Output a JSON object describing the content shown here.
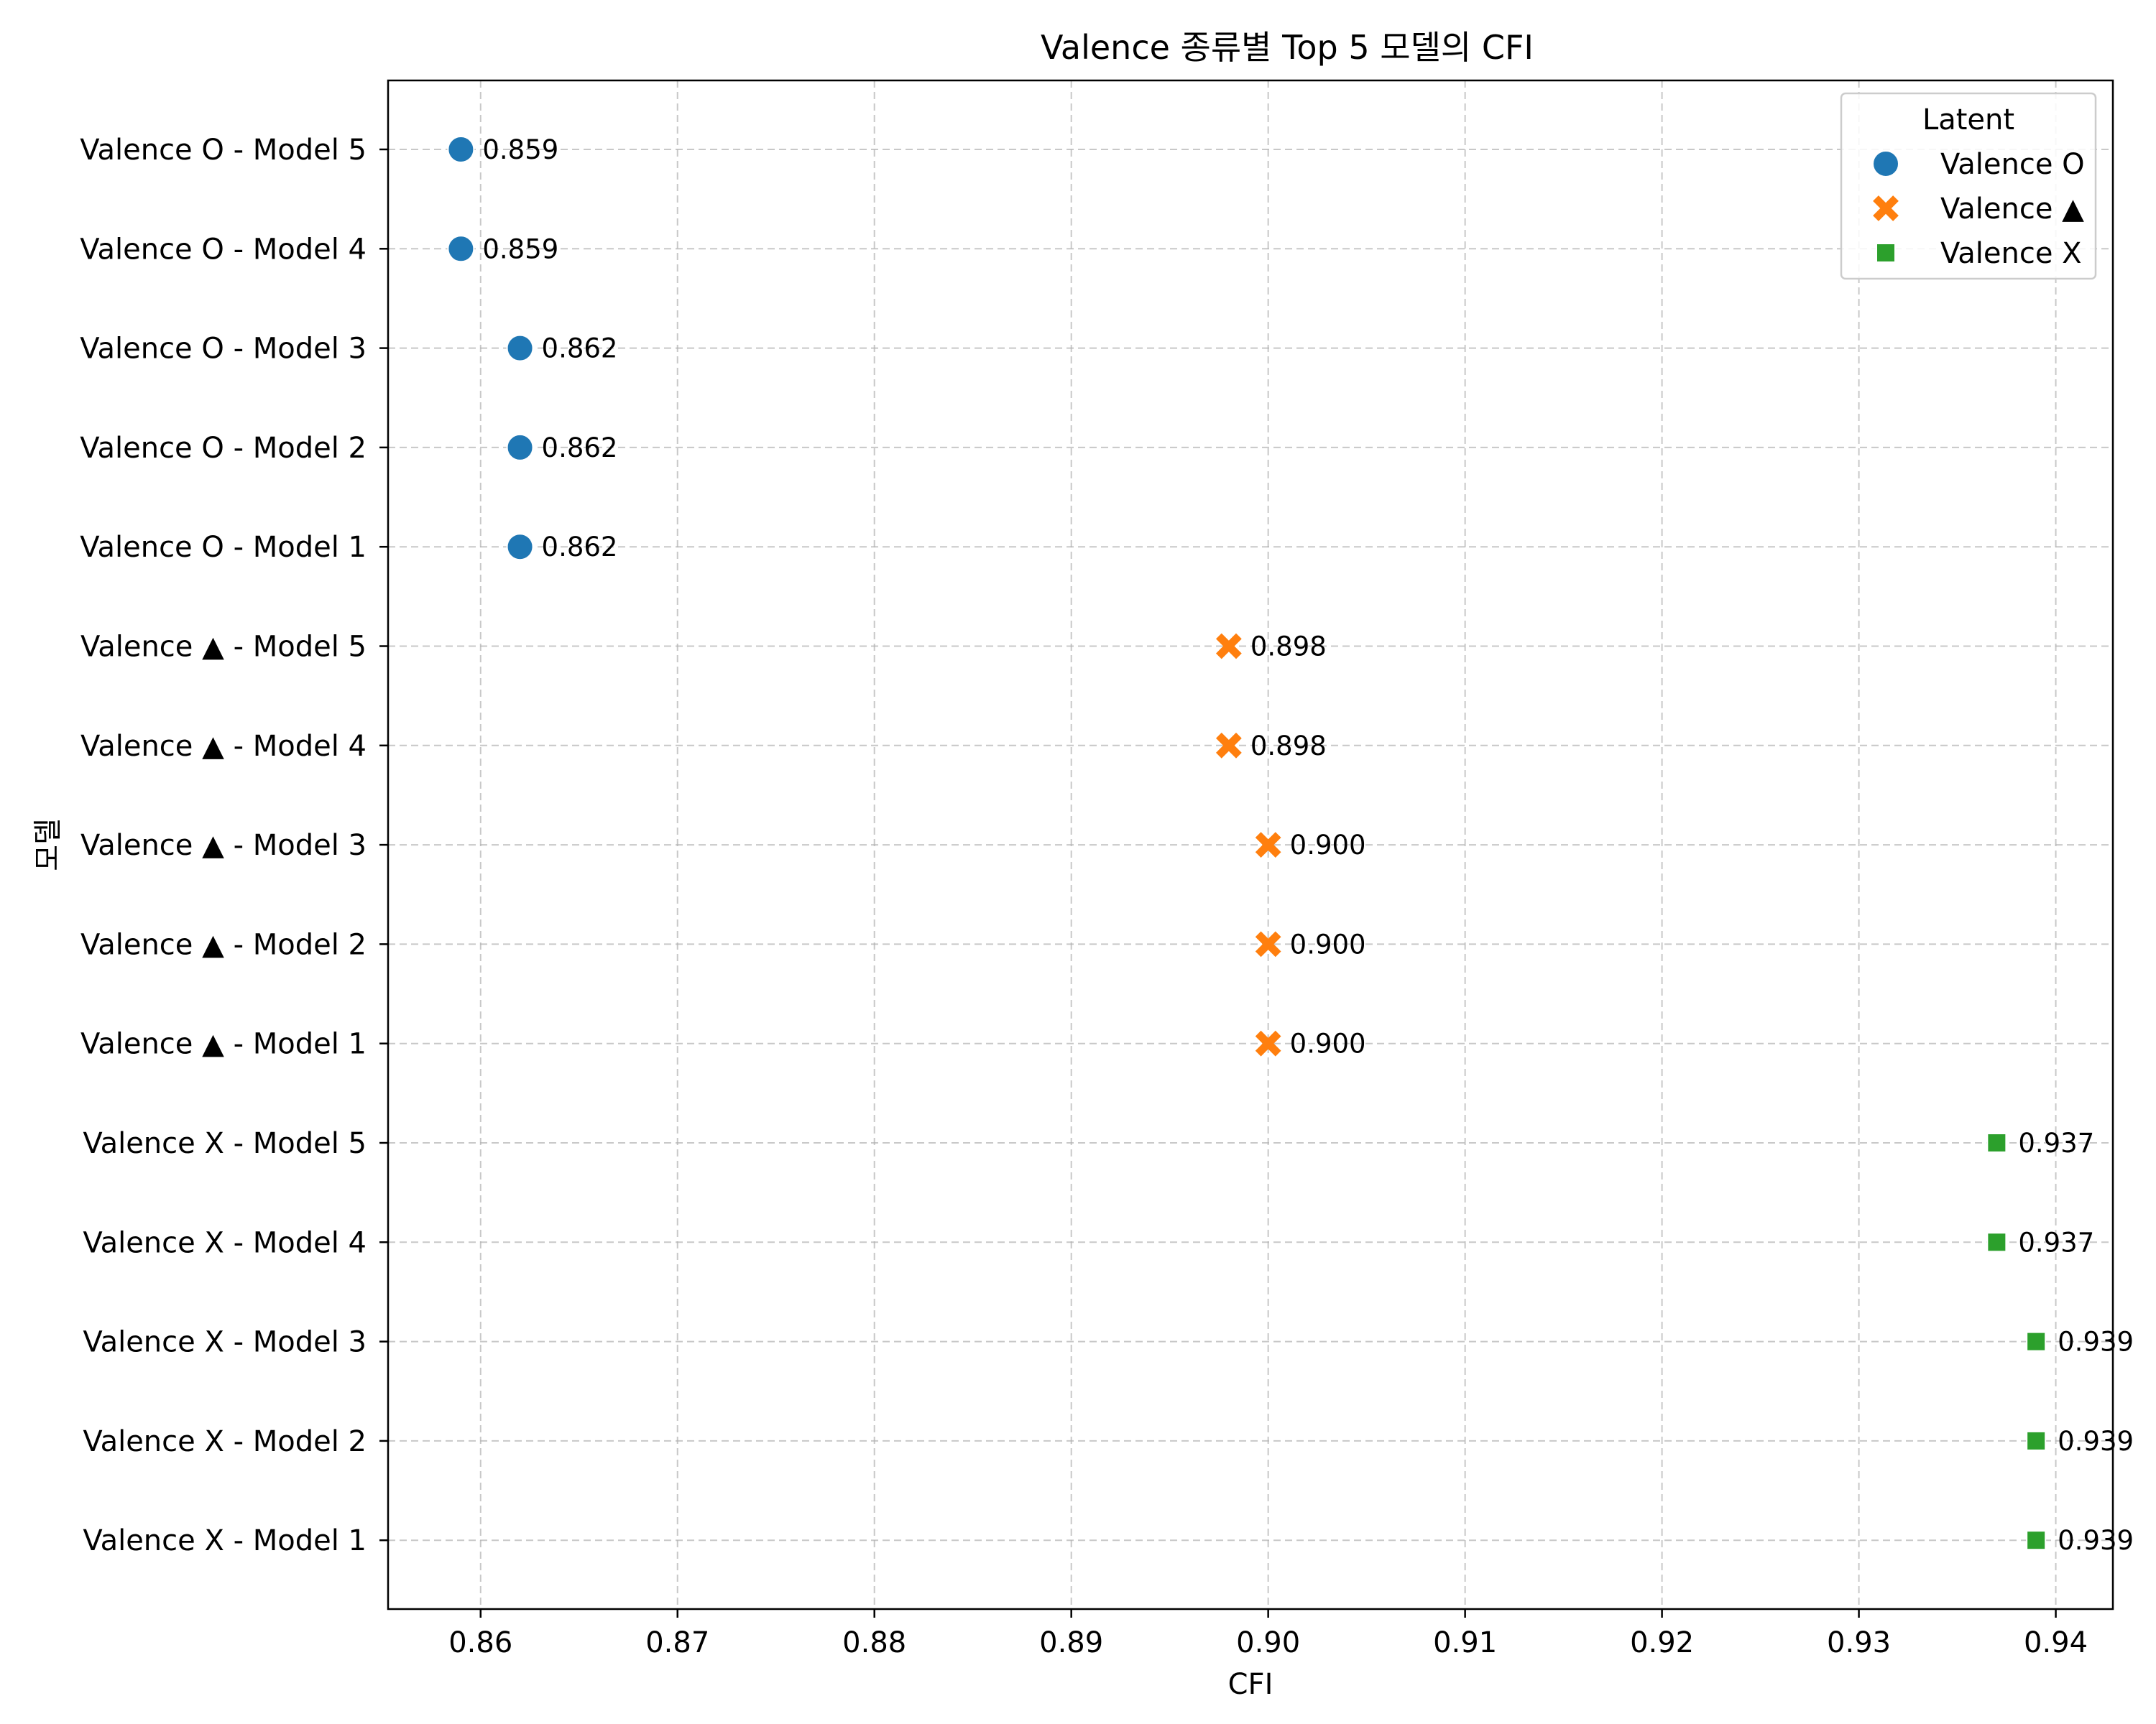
{
  "chart_data": {
    "type": "scatter",
    "title": "Valence 종류별 Top 5 모델의 CFI",
    "xlabel": "CFI",
    "ylabel": "모델",
    "xlim": [
      0.8553,
      0.9429
    ],
    "xticks": [
      0.86,
      0.87,
      0.88,
      0.89,
      0.9,
      0.91,
      0.92,
      0.93,
      0.94
    ],
    "xtick_labels": [
      "0.86",
      "0.87",
      "0.88",
      "0.89",
      "0.90",
      "0.91",
      "0.92",
      "0.93",
      "0.94"
    ],
    "grid": true,
    "legend": {
      "title": "Latent",
      "placement": "top-right"
    },
    "categories": [
      "Valence O - Model 5",
      "Valence O - Model 4",
      "Valence O - Model 3",
      "Valence O - Model 2",
      "Valence O - Model 1",
      "Valence ▲ - Model 5",
      "Valence ▲ - Model 4",
      "Valence ▲ - Model 3",
      "Valence ▲ - Model 2",
      "Valence ▲ - Model 1",
      "Valence X - Model 5",
      "Valence X - Model 4",
      "Valence X - Model 3",
      "Valence X - Model 2",
      "Valence X - Model 1"
    ],
    "series": [
      {
        "name": "Valence O",
        "marker": "circle",
        "color": "#1f77b4",
        "points": [
          {
            "category": "Valence O - Model 5",
            "x": 0.859,
            "label": "0.859"
          },
          {
            "category": "Valence O - Model 4",
            "x": 0.859,
            "label": "0.859"
          },
          {
            "category": "Valence O - Model 3",
            "x": 0.862,
            "label": "0.862"
          },
          {
            "category": "Valence O - Model 2",
            "x": 0.862,
            "label": "0.862"
          },
          {
            "category": "Valence O - Model 1",
            "x": 0.862,
            "label": "0.862"
          }
        ]
      },
      {
        "name": "Valence ▲",
        "marker": "x",
        "color": "#ff7f0e",
        "points": [
          {
            "category": "Valence ▲ - Model 5",
            "x": 0.898,
            "label": "0.898"
          },
          {
            "category": "Valence ▲ - Model 4",
            "x": 0.898,
            "label": "0.898"
          },
          {
            "category": "Valence ▲ - Model 3",
            "x": 0.9,
            "label": "0.900"
          },
          {
            "category": "Valence ▲ - Model 2",
            "x": 0.9,
            "label": "0.900"
          },
          {
            "category": "Valence ▲ - Model 1",
            "x": 0.9,
            "label": "0.900"
          }
        ]
      },
      {
        "name": "Valence X",
        "marker": "square",
        "color": "#2ca02c",
        "points": [
          {
            "category": "Valence X - Model 5",
            "x": 0.937,
            "label": "0.937"
          },
          {
            "category": "Valence X - Model 4",
            "x": 0.937,
            "label": "0.937"
          },
          {
            "category": "Valence X - Model 3",
            "x": 0.939,
            "label": "0.939"
          },
          {
            "category": "Valence X - Model 2",
            "x": 0.939,
            "label": "0.939"
          },
          {
            "category": "Valence X - Model 1",
            "x": 0.939,
            "label": "0.939"
          }
        ]
      }
    ]
  }
}
